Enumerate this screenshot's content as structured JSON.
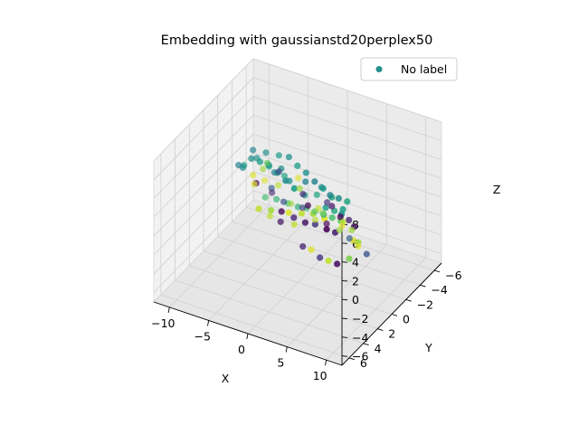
{
  "chart_data": {
    "type": "scatter",
    "projection": "3d",
    "title": "Embedding with gaussianstd20perplex50",
    "xlabel": "X",
    "ylabel": "Y",
    "zlabel": "Z",
    "xlim": [
      -12,
      12
    ],
    "ylim": [
      -7,
      7
    ],
    "zlim": [
      -7,
      8
    ],
    "x_ticks": [
      -10,
      -5,
      0,
      5,
      10
    ],
    "y_ticks": [
      -6,
      -4,
      -2,
      0,
      2,
      4,
      6
    ],
    "z_ticks": [
      -6,
      -4,
      -2,
      0,
      2,
      4,
      6,
      8
    ],
    "x_tick_labels": [
      "−10",
      "−5",
      "0",
      "5",
      "10"
    ],
    "y_tick_labels": [
      "−6",
      "−4",
      "−2",
      "0",
      "2",
      "4",
      "6"
    ],
    "z_tick_labels": [
      "−6",
      "−4",
      "−2",
      "0",
      "2",
      "4",
      "6",
      "8"
    ],
    "grid": true,
    "colormap": "viridis",
    "legend": {
      "position": "top-right",
      "entries": [
        {
          "label": "No label",
          "color": "#21918c"
        }
      ]
    },
    "series": [
      {
        "points": [
          {
            "x": -9.5,
            "y": -4.2,
            "z": -1.5,
            "c": 0.95
          },
          {
            "x": -9.0,
            "y": -3.8,
            "z": -2.0,
            "c": 0.95
          },
          {
            "x": -8.5,
            "y": -4.5,
            "z": -0.8,
            "c": 0.85
          },
          {
            "x": -8.0,
            "y": -3.0,
            "z": -1.0,
            "c": 0.0
          },
          {
            "x": -7.5,
            "y": -4.0,
            "z": 0.5,
            "c": 0.75
          },
          {
            "x": -7.0,
            "y": -5.0,
            "z": -2.5,
            "c": 0.9
          },
          {
            "x": -9.8,
            "y": -2.5,
            "z": 0.8,
            "c": 0.45
          },
          {
            "x": -8.8,
            "y": -2.0,
            "z": 1.2,
            "c": 0.5
          },
          {
            "x": -8.2,
            "y": -1.5,
            "z": 2.0,
            "c": 0.55
          },
          {
            "x": -7.2,
            "y": -2.2,
            "z": 2.5,
            "c": 0.5
          },
          {
            "x": -6.5,
            "y": -3.5,
            "z": -1.5,
            "c": 0.3
          },
          {
            "x": -6.0,
            "y": -4.0,
            "z": 0.0,
            "c": 0.2
          },
          {
            "x": -5.5,
            "y": -2.8,
            "z": 1.0,
            "c": 0.45
          },
          {
            "x": -5.0,
            "y": -1.5,
            "z": 2.8,
            "c": 0.55
          },
          {
            "x": -4.5,
            "y": -3.0,
            "z": -2.0,
            "c": 0.25
          },
          {
            "x": -4.0,
            "y": -4.5,
            "z": -0.5,
            "c": 0.95
          },
          {
            "x": -3.5,
            "y": -2.0,
            "z": 1.8,
            "c": 0.6
          },
          {
            "x": -3.0,
            "y": -1.0,
            "z": 3.5,
            "c": 0.5
          },
          {
            "x": -2.5,
            "y": -3.5,
            "z": -1.0,
            "c": 0.1
          },
          {
            "x": -2.0,
            "y": -2.5,
            "z": 0.5,
            "c": 0.85
          },
          {
            "x": -1.5,
            "y": -0.5,
            "z": 3.0,
            "c": 0.5
          },
          {
            "x": -1.0,
            "y": -4.0,
            "z": -2.5,
            "c": 0.9
          },
          {
            "x": -0.5,
            "y": -2.0,
            "z": -0.5,
            "c": 0.0
          },
          {
            "x": 0.0,
            "y": -1.0,
            "z": 1.5,
            "c": 0.55
          },
          {
            "x": 0.5,
            "y": -3.0,
            "z": -1.8,
            "c": 0.8
          },
          {
            "x": 1.0,
            "y": 0.0,
            "z": 4.0,
            "c": 0.45
          },
          {
            "x": 1.5,
            "y": -2.5,
            "z": 0.0,
            "c": 0.15
          },
          {
            "x": 2.0,
            "y": -0.5,
            "z": 2.5,
            "c": 0.6
          },
          {
            "x": 2.5,
            "y": -3.5,
            "z": -3.0,
            "c": 0.95
          },
          {
            "x": 3.0,
            "y": -1.5,
            "z": 0.8,
            "c": 0.05
          },
          {
            "x": 3.5,
            "y": 0.5,
            "z": 4.5,
            "c": 0.5
          },
          {
            "x": 4.0,
            "y": -2.0,
            "z": -1.0,
            "c": 0.9
          },
          {
            "x": 4.5,
            "y": 1.0,
            "z": 3.0,
            "c": 0.55
          },
          {
            "x": 5.0,
            "y": -0.5,
            "z": 1.0,
            "c": 0.0
          },
          {
            "x": 5.5,
            "y": 1.5,
            "z": 5.0,
            "c": 0.45
          },
          {
            "x": 6.0,
            "y": -1.0,
            "z": -0.5,
            "c": 0.85
          },
          {
            "x": 6.5,
            "y": 2.0,
            "z": 4.0,
            "c": 0.6
          },
          {
            "x": 7.0,
            "y": 0.5,
            "z": 2.0,
            "c": 0.1
          },
          {
            "x": 7.5,
            "y": 2.5,
            "z": 6.0,
            "c": 0.5
          },
          {
            "x": 8.0,
            "y": 1.0,
            "z": 0.5,
            "c": 0.95
          },
          {
            "x": 8.5,
            "y": 3.0,
            "z": 5.5,
            "c": 0.55
          },
          {
            "x": 9.0,
            "y": 2.0,
            "z": 3.0,
            "c": 0.05
          },
          {
            "x": 9.5,
            "y": 3.5,
            "z": 7.0,
            "c": 0.6
          },
          {
            "x": 10.0,
            "y": 2.5,
            "z": 2.0,
            "c": 0.85
          },
          {
            "x": -6.8,
            "y": -1.0,
            "z": 3.5,
            "c": 0.5
          },
          {
            "x": -4.8,
            "y": 0.0,
            "z": 4.5,
            "c": 0.55
          },
          {
            "x": -2.8,
            "y": 1.0,
            "z": 5.5,
            "c": 0.5
          },
          {
            "x": -0.8,
            "y": 2.0,
            "z": 6.0,
            "c": 0.55
          },
          {
            "x": 1.2,
            "y": 3.0,
            "z": 6.5,
            "c": 0.5
          },
          {
            "x": 3.2,
            "y": 4.0,
            "z": 7.0,
            "c": 0.55
          },
          {
            "x": -5.8,
            "y": -2.5,
            "z": -3.5,
            "c": 0.9
          },
          {
            "x": -3.8,
            "y": -1.8,
            "z": -3.0,
            "c": 0.05
          },
          {
            "x": -1.8,
            "y": -1.5,
            "z": -2.5,
            "c": 0.9
          },
          {
            "x": 0.2,
            "y": -0.5,
            "z": -3.5,
            "c": 0.1
          },
          {
            "x": 2.2,
            "y": 0.5,
            "z": -2.5,
            "c": 0.95
          },
          {
            "x": 4.2,
            "y": 1.5,
            "z": -2.0,
            "c": 0.15
          },
          {
            "x": 6.2,
            "y": 2.5,
            "z": -1.0,
            "c": 0.9
          },
          {
            "x": 8.2,
            "y": 3.5,
            "z": 0.0,
            "c": 0.05
          },
          {
            "x": 10.2,
            "y": 4.0,
            "z": 1.5,
            "c": 0.8
          },
          {
            "x": -9.2,
            "y": -5.5,
            "z": -3.0,
            "c": 0.95
          },
          {
            "x": -7.8,
            "y": -5.0,
            "z": -3.5,
            "c": 0.1
          },
          {
            "x": -5.2,
            "y": -4.8,
            "z": -3.8,
            "c": 0.85
          },
          {
            "x": -3.2,
            "y": -4.2,
            "z": -3.2,
            "c": 0.2
          },
          {
            "x": -1.2,
            "y": -3.8,
            "z": -3.6,
            "c": 0.9
          },
          {
            "x": 0.8,
            "y": -3.2,
            "z": -3.0,
            "c": 0.0
          },
          {
            "x": 2.8,
            "y": -2.8,
            "z": -2.8,
            "c": 0.85
          },
          {
            "x": 4.8,
            "y": -2.0,
            "z": -2.5,
            "c": 0.3
          },
          {
            "x": 6.8,
            "y": -1.0,
            "z": -2.0,
            "c": 0.95
          },
          {
            "x": 8.8,
            "y": 0.0,
            "z": -1.5,
            "c": 0.25
          },
          {
            "x": -8.6,
            "y": -3.2,
            "z": 2.2,
            "c": 0.45
          },
          {
            "x": -6.4,
            "y": -2.6,
            "z": 3.0,
            "c": 0.5
          },
          {
            "x": -4.2,
            "y": -2.0,
            "z": 3.8,
            "c": 0.55
          },
          {
            "x": -2.2,
            "y": -1.2,
            "z": 4.8,
            "c": 0.5
          },
          {
            "x": -0.2,
            "y": -0.2,
            "z": 5.2,
            "c": 0.55
          },
          {
            "x": 1.8,
            "y": 0.8,
            "z": 5.8,
            "c": 0.5
          },
          {
            "x": 3.8,
            "y": 1.8,
            "z": 6.2,
            "c": 0.45
          },
          {
            "x": 5.8,
            "y": 2.8,
            "z": 6.8,
            "c": 0.55
          },
          {
            "x": 7.8,
            "y": 3.8,
            "z": 7.2,
            "c": 0.6
          },
          {
            "x": -1.6,
            "y": 0.5,
            "z": 0.5,
            "c": 0.0
          },
          {
            "x": 0.6,
            "y": 1.2,
            "z": 1.0,
            "c": 0.1
          },
          {
            "x": 2.6,
            "y": 1.8,
            "z": 1.5,
            "c": 0.05
          },
          {
            "x": 4.6,
            "y": 2.6,
            "z": 2.5,
            "c": 0.15
          },
          {
            "x": 6.6,
            "y": 3.2,
            "z": 3.0,
            "c": 0.0
          },
          {
            "x": 8.6,
            "y": 4.2,
            "z": 4.0,
            "c": 0.1
          },
          {
            "x": -3.6,
            "y": 1.5,
            "z": 1.0,
            "c": 0.9
          },
          {
            "x": -1.4,
            "y": 2.2,
            "z": 2.0,
            "c": 0.85
          },
          {
            "x": 1.4,
            "y": 2.8,
            "z": 3.0,
            "c": 0.95
          },
          {
            "x": 3.6,
            "y": 3.4,
            "z": 4.0,
            "c": 0.9
          },
          {
            "x": 5.6,
            "y": 4.0,
            "z": 5.0,
            "c": 0.85
          },
          {
            "x": 7.6,
            "y": 4.6,
            "z": 5.5,
            "c": 0.95
          },
          {
            "x": -7.4,
            "y": -3.6,
            "z": -2.8,
            "c": 0.7
          },
          {
            "x": -5.6,
            "y": -3.2,
            "z": -2.2,
            "c": 0.65
          },
          {
            "x": -3.4,
            "y": -2.4,
            "z": -1.4,
            "c": 0.7
          },
          {
            "x": -1.4,
            "y": -1.6,
            "z": -0.6,
            "c": 0.65
          },
          {
            "x": 0.4,
            "y": -0.8,
            "z": 0.4,
            "c": 0.7
          },
          {
            "x": 2.4,
            "y": 0.2,
            "z": 1.4,
            "c": 0.75
          },
          {
            "x": 4.4,
            "y": 1.2,
            "z": 2.4,
            "c": 0.65
          },
          {
            "x": 6.4,
            "y": 2.2,
            "z": 3.4,
            "c": 0.7
          },
          {
            "x": 8.4,
            "y": 3.2,
            "z": 4.4,
            "c": 0.75
          },
          {
            "x": 9.6,
            "y": 4.4,
            "z": 6.4,
            "c": 0.5
          }
        ]
      }
    ]
  }
}
